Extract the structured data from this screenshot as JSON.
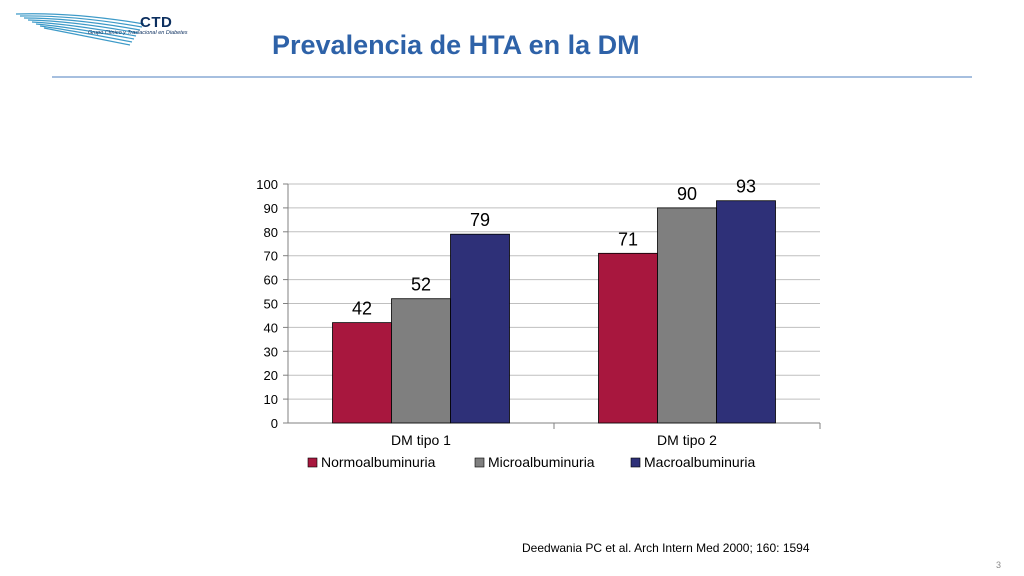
{
  "header": {
    "logo_title": "CTD",
    "logo_subtitle": "Grupo Clínico y Traslacional en Diabetes",
    "title": "Prevalencia de HTA en la DM"
  },
  "colors": {
    "title": "#2e62a8",
    "rule": "#4d7fbf",
    "logo": "#3d9ac8"
  },
  "chart_data": {
    "type": "bar",
    "categories": [
      "DM tipo 1",
      "DM tipo 2"
    ],
    "series": [
      {
        "name": "Normoalbuminuria",
        "values": [
          42,
          71
        ],
        "color": "#a8173e"
      },
      {
        "name": "Microalbuminuria",
        "values": [
          52,
          90
        ],
        "color": "#7f7f7f"
      },
      {
        "name": "Macroalbuminuria",
        "values": [
          79,
          93
        ],
        "color": "#2e3078"
      }
    ],
    "ylim": [
      0,
      100
    ],
    "yticks": [
      0,
      10,
      20,
      30,
      40,
      50,
      60,
      70,
      80,
      90,
      100
    ],
    "grid": true,
    "legend": "bottom"
  },
  "footer": {
    "citation": "Deedwania PC et al. Arch Intern Med 2000; 160: 1594",
    "page_number": "3"
  }
}
